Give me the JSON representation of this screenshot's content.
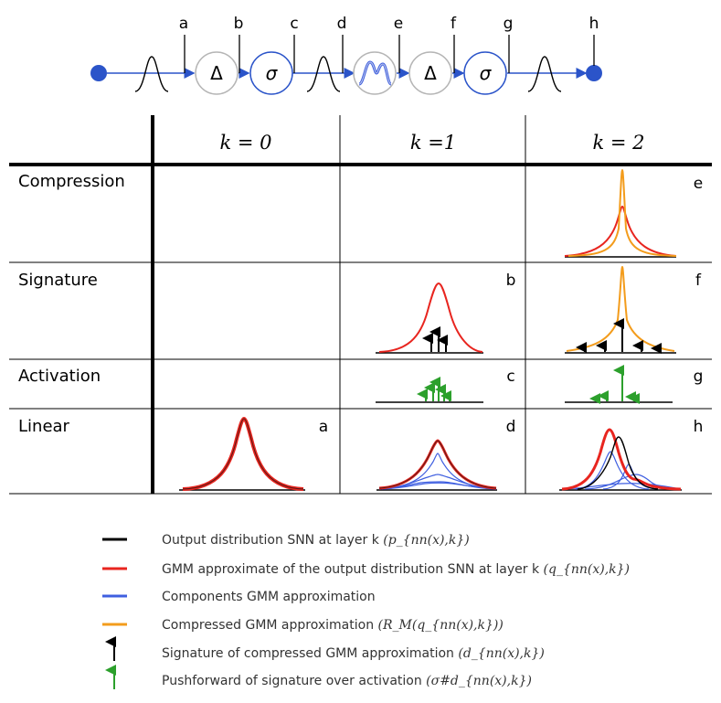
{
  "pipeline": {
    "labels": [
      "a",
      "b",
      "c",
      "d",
      "e",
      "f",
      "g",
      "h"
    ],
    "operators": {
      "delta": "Δ",
      "sigma": "σ"
    }
  },
  "table": {
    "columns": [
      "k = 0",
      "k =1",
      "k = 2"
    ],
    "rows": [
      "Compression",
      "Signature",
      "Activation",
      "Linear"
    ],
    "cell_labels": {
      "compression_k2": "e",
      "signature_k1": "b",
      "signature_k2": "f",
      "activation_k1": "c",
      "activation_k2": "g",
      "linear_k0": "a",
      "linear_k1": "d",
      "linear_k2": "h"
    }
  },
  "legend": [
    {
      "text": "Output distribution SNN at layer k",
      "math": "(p_{nn(x),k})",
      "color": "#000000",
      "kind": "line"
    },
    {
      "text": "GMM approximate of the output distribution SNN at layer k",
      "math": "(q_{nn(x),k})",
      "color": "#e8251f",
      "kind": "line"
    },
    {
      "text": "Components GMM approximation",
      "math": "",
      "color": "#3f5fe0",
      "kind": "line"
    },
    {
      "text": "Compressed GMM approximation",
      "math": "(R_M(q_{nn(x),k}))",
      "color": "#f39c1c",
      "kind": "line"
    },
    {
      "text": "Signature of compressed GMM approximation",
      "math": "(d_{nn(x),k})",
      "color": "#000000",
      "kind": "arrow"
    },
    {
      "text": "Pushforward of signature over activation",
      "math": "(σ#d_{nn(x),k})",
      "color": "#2ca02c",
      "kind": "arrow"
    }
  ],
  "colors": {
    "pipeline_blue": "#2b54c9",
    "node_gray": "#b5b5b5",
    "black": "#000000",
    "red": "#e8251f",
    "blue": "#3f5fe0",
    "orange": "#f39c1c",
    "green": "#2ca02c"
  }
}
